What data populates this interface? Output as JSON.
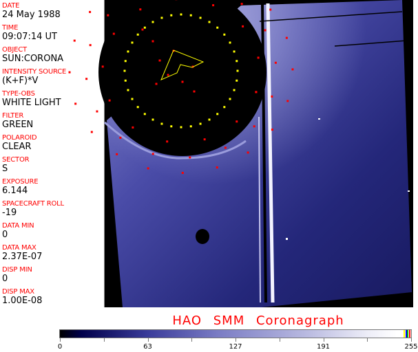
{
  "fields": [
    {
      "label": "DATE",
      "value": "24 May 1988"
    },
    {
      "label": "TIME",
      "value": "09:07:14 UT"
    },
    {
      "label": "OBJECT",
      "value": "SUN:CORONA"
    },
    {
      "label": "INTENSITY SOURCE",
      "value": "(K+F)*V"
    },
    {
      "label": "TYPE-OBS",
      "value": "WHITE LIGHT"
    },
    {
      "label": "FILTER",
      "value": "GREEN"
    },
    {
      "label": "POLAROID",
      "value": "CLEAR"
    },
    {
      "label": "SECTOR",
      "value": "S"
    },
    {
      "label": "EXPOSURE",
      "value": "6.144"
    },
    {
      "label": "SPACECRAFT ROLL",
      "value": "-19"
    },
    {
      "label": "DATA MIN",
      "value": "0"
    },
    {
      "label": "DATA MAX",
      "value": "2.37E-07"
    },
    {
      "label": "DISP MIN",
      "value": "0"
    },
    {
      "label": "DISP MAX",
      "value": "1.00E-08"
    }
  ],
  "title": "HAO SMM Coronagraph",
  "colorbar": {
    "ticks": [
      "0",
      "63",
      "127",
      "191",
      "255"
    ],
    "range": [
      0,
      255
    ],
    "colors": {
      "low": "#000000",
      "mid": "#3a3c9a",
      "high": "#ffffff",
      "markers": [
        "#ffff00",
        "#0000ff",
        "#00c000",
        "#ff0000"
      ]
    }
  },
  "overlay_colors": {
    "grid_dots": "#ff0000",
    "limb_dots": "#ffff00"
  }
}
